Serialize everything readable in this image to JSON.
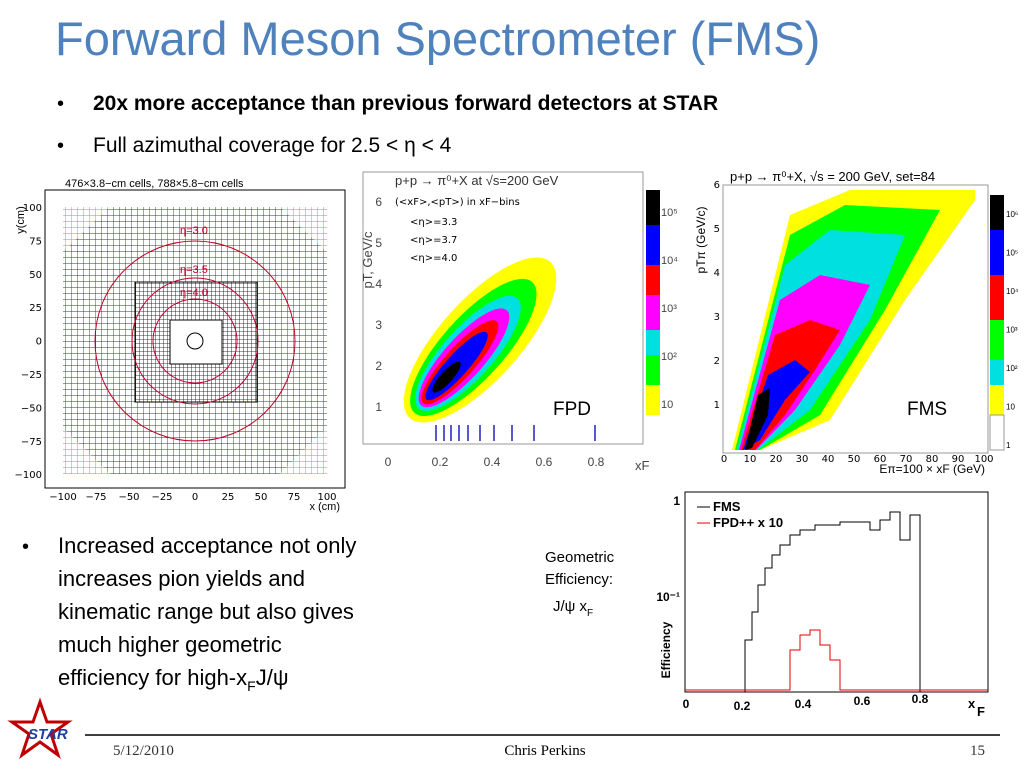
{
  "title": "Forward Meson Spectrometer (FMS)",
  "bullets_top": [
    "20x more acceptance than previous forward detectors at STAR",
    "Full azimuthal coverage for 2.5 < η < 4"
  ],
  "bullet_bottom": {
    "lines": [
      "Increased acceptance not only",
      "increases pion yields and",
      "kinematic range but also gives",
      "much higher geometric",
      "efficiency for high-x"
    ],
    "sub": "F",
    "tail": " J/ψ"
  },
  "geometric_label": {
    "lines": [
      "Geometric",
      "Efficiency:"
    ],
    "jpsi": "J/ψ x",
    "sub": "F"
  },
  "detector_plot": {
    "title": "476×3.8−cm cells, 788×5.8−cm cells",
    "ylabel": "y(cm)",
    "xlabel": "x (cm)",
    "xticks": [
      "−100",
      "−75",
      "−50",
      "−25",
      "0",
      "25",
      "50",
      "75",
      "100"
    ],
    "yticks": [
      "100",
      "75",
      "50",
      "25",
      "0",
      "−25",
      "−50",
      "−75",
      "−100"
    ],
    "rings": [
      "η=3.0",
      "η=3.5",
      "η=4.0"
    ]
  },
  "fpd_plot": {
    "title": "p+p → π⁰+X at √s=200 GeV",
    "legend": [
      "(<xF>,<pT>) in xF−bins",
      "<η>=3.3",
      "<η>=3.7",
      "<η>=4.0"
    ],
    "ylabel": "pT, GeV/c",
    "xlabel": "xF",
    "xticks": [
      "0",
      "0.2",
      "0.4",
      "0.6",
      "0.8"
    ],
    "yticks": [
      "1",
      "2",
      "3",
      "4",
      "5",
      "6"
    ],
    "zticks": [
      "10",
      "10²",
      "10³",
      "10⁴",
      "10⁵"
    ],
    "label": "FPD"
  },
  "fms_plot": {
    "title": "p+p → π⁰+X, √s = 200 GeV, set=84",
    "ylabel": "pTπ (GeV/c)",
    "xlabel": "Eπ=100 × xF (GeV)",
    "xticks": [
      "0",
      "10",
      "20",
      "30",
      "40",
      "50",
      "60",
      "70",
      "80",
      "90",
      "100"
    ],
    "yticks": [
      "1",
      "2",
      "3",
      "4",
      "5",
      "6"
    ],
    "zticks": [
      "1",
      "10",
      "10²",
      "10³",
      "10⁴",
      "10⁵",
      "10⁶"
    ],
    "label": "FMS"
  },
  "eff_plot": {
    "legend": [
      "FMS",
      "FPD++ x 10"
    ],
    "ylabel": "Efficiency",
    "yticks": [
      "1",
      "10⁻¹"
    ],
    "xticks": [
      "0",
      "0.2",
      "0.4",
      "0.6",
      "0.8"
    ],
    "xlabel": "x",
    "xlabel_sub": "F"
  },
  "footer": {
    "date": "5/12/2010",
    "author": "Chris Perkins",
    "page": "15"
  },
  "logo": "STAR"
}
